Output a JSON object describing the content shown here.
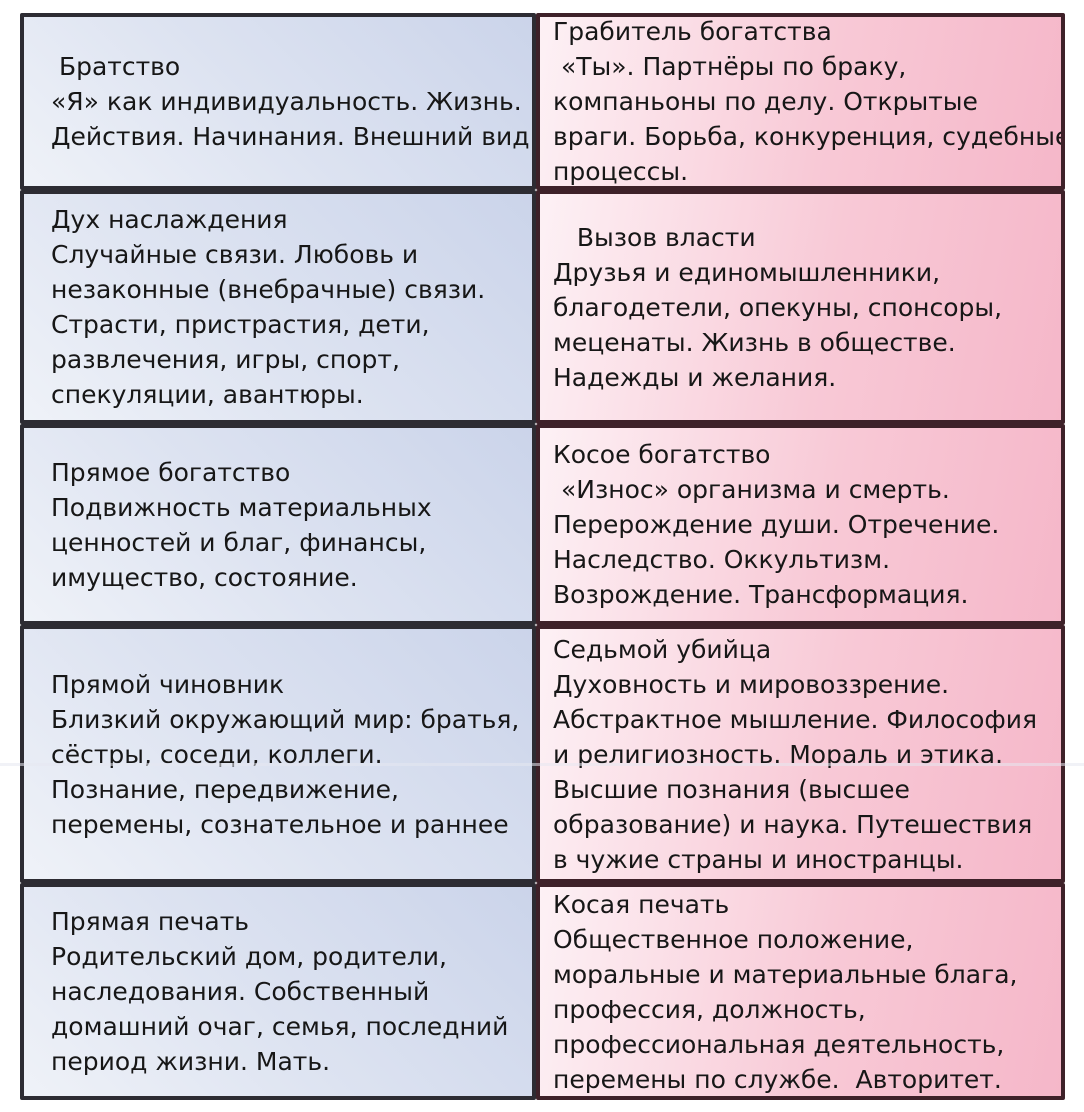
{
  "page": {
    "background": "#ffffff",
    "description_language": "Russian"
  },
  "colors": {
    "left_cell_gradient_light": "#eff2f8",
    "left_cell_gradient_dark": "#cbd4ea",
    "left_cell_border": "#2d2c33",
    "right_cell_gradient_light": "#fdf1f5",
    "right_cell_gradient_dark": "#f5b7c9",
    "right_cell_border": "#3e2129",
    "text": "#171717"
  },
  "table": {
    "rows": [
      {
        "left": " Братство\n«Я» как индивидуальность. Жизнь.\nДействия. Начинания. Внешний вид.",
        "right": "Грабитель богатства\n «Ты». Партнёры по браку,\nкомпаньоны по делу. Открытые\nвраги. Борьба, конкуренция, судебные\nпроцессы."
      },
      {
        "left": "Дух наслаждения\nСлучайные связи. Любовь и\nнезаконные (внебрачные) связи.\nСтрасти, пристрастия, дети,\nразвлечения, игры, спорт,\nспекуляции, авантюры.",
        "right": "   Вызов власти\nДрузья и единомышленники,\nблагодетели, опекуны, спонсоры,\nмеценаты. Жизнь в обществе.\nНадежды и желания."
      },
      {
        "left": "Прямое богатство\nПодвижность материальных\nценностей и благ, финансы,\nимущество, состояние.",
        "right": "Косое богатство\n «Износ» организма и смерть.\nПерерождение души. Отречение.\nНаследство. Оккультизм.\nВозрождение. Трансформация."
      },
      {
        "left": "Прямой чиновник\nБлизкий окружающий мир: братья,\nсёстры, соседи, коллеги.\nПознание, передвижение,\nперемены, сознательное и раннее",
        "right": "Седьмой убийца\nДуховность и мировоззрение.\nАбстрактное мышление. Философия\nи религиозность. Мораль и этика.\nВысшие познания (высшее\nобразование) и наука. Путешествия\nв чужие страны и иностранцы."
      },
      {
        "left": "Прямая печать\nРодительский дом, родители,\nнаследования. Собственный\nдомашний очаг, семья, последний\nпериод жизни. Мать.",
        "right": "Косая печать\nОбщественное положение,\nморальные и материальные блага,\nпрофессия, должность,\nпрофессиональная деятельность,\nперемены по службе.  Авторитет."
      }
    ]
  }
}
